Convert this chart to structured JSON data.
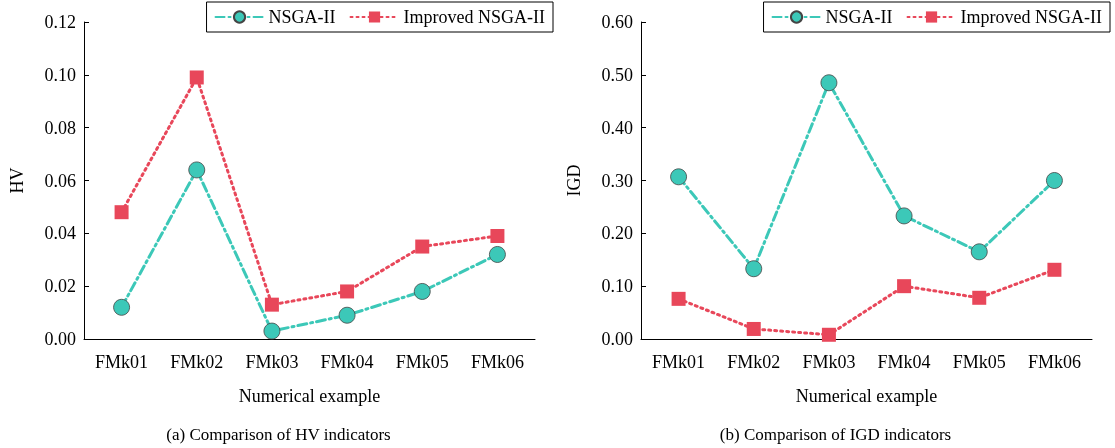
{
  "chart_data": [
    {
      "type": "line",
      "title": "(a) Comparison of HV indicators",
      "xlabel": "Numerical example",
      "ylabel": "HV",
      "categories": [
        "FMk01",
        "FMk02",
        "FMk03",
        "FMk04",
        "FMk05",
        "FMk06"
      ],
      "series": [
        {
          "name": "NSGA-II",
          "color": "#3cc8b8",
          "marker": "circle",
          "line_style": "dashed",
          "values": [
            0.012,
            0.064,
            0.003,
            0.009,
            0.018,
            0.032
          ]
        },
        {
          "name": "Improved NSGA-II",
          "color": "#e8475a",
          "marker": "square",
          "line_style": "dotted",
          "values": [
            0.048,
            0.099,
            0.013,
            0.018,
            0.035,
            0.039
          ]
        }
      ],
      "ylim": [
        0,
        0.12
      ],
      "yticks": [
        {
          "value": 0,
          "label": "0.00"
        },
        {
          "value": 0.02,
          "label": "0.02"
        },
        {
          "value": 0.04,
          "label": "0.04"
        },
        {
          "value": 0.06,
          "label": "0.06"
        },
        {
          "value": 0.08,
          "label": "0.08"
        },
        {
          "value": 0.1,
          "label": "0.10"
        },
        {
          "value": 0.12,
          "label": "0.12"
        }
      ],
      "grid": false,
      "legend": "top right"
    },
    {
      "type": "line",
      "title": "(b) Comparison of IGD indicators",
      "xlabel": "Numerical example",
      "ylabel": "IGD",
      "categories": [
        "FMk01",
        "FMk02",
        "FMk03",
        "FMk04",
        "FMk05",
        "FMk06"
      ],
      "series": [
        {
          "name": "NSGA-II",
          "color": "#3cc8b8",
          "marker": "circle",
          "line_style": "dashed",
          "values": [
            0.307,
            0.133,
            0.485,
            0.233,
            0.165,
            0.3
          ]
        },
        {
          "name": "Improved NSGA-II",
          "color": "#e8475a",
          "marker": "square",
          "line_style": "dotted",
          "values": [
            0.076,
            0.019,
            0.008,
            0.1,
            0.078,
            0.131
          ]
        }
      ],
      "ylim": [
        0,
        0.6
      ],
      "yticks": [
        {
          "value": 0,
          "label": "0.00"
        },
        {
          "value": 0.1,
          "label": "0.10"
        },
        {
          "value": 0.2,
          "label": "0.20"
        },
        {
          "value": 0.3,
          "label": "0.30"
        },
        {
          "value": 0.4,
          "label": "0.40"
        },
        {
          "value": 0.5,
          "label": "0.50"
        },
        {
          "value": 0.6,
          "label": "0.60"
        }
      ],
      "grid": false,
      "legend": "top right"
    }
  ]
}
